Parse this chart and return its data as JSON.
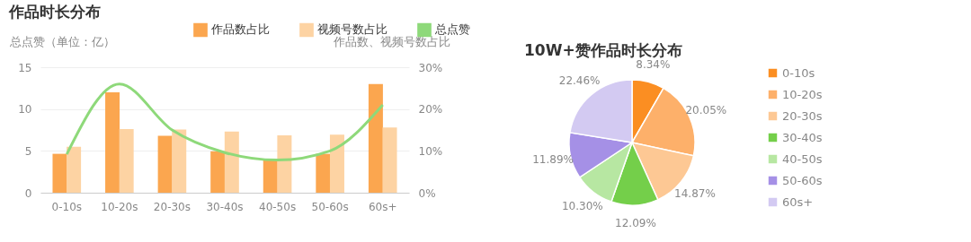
{
  "chart_data": [
    {
      "type": "bar",
      "title": "作品时长分布",
      "ylabel": "总点赞（单位：亿）",
      "y2label": "作品数、视频号数占比",
      "categories": [
        "0-10s",
        "10-20s",
        "20-30s",
        "30-40s",
        "40-50s",
        "50-60s",
        "60s+"
      ],
      "series": [
        {
          "name": "作品数占比",
          "color": "#fba64f",
          "axis": "y2",
          "values": [
            9.3,
            24,
            13.6,
            9.9,
            7.8,
            9.3,
            26
          ]
        },
        {
          "name": "视频号数占比",
          "color": "#fdd3a3",
          "axis": "y2",
          "values": [
            11,
            15.2,
            15.1,
            14.6,
            13.7,
            13.9,
            15.6
          ]
        },
        {
          "name": "总点赞",
          "type": "line",
          "color": "#8ed97a",
          "values": [
            4.6,
            13,
            7.5,
            4.8,
            3.9,
            5,
            10.5
          ]
        }
      ],
      "ylim": [
        0,
        15
      ],
      "yticks": [
        0,
        5,
        10,
        15
      ],
      "y2lim": [
        0,
        30
      ],
      "y2ticks": [
        {
          "value": 0,
          "label": "0%"
        },
        {
          "value": 10,
          "label": "10%"
        },
        {
          "value": 20,
          "label": "20%"
        },
        {
          "value": 30,
          "label": "30%"
        }
      ],
      "grid": "y",
      "legend": "top"
    },
    {
      "type": "pie",
      "title": "10W+赞作品时长分布",
      "categories": [
        "0-10s",
        "10-20s",
        "20-30s",
        "30-40s",
        "40-50s",
        "50-60s",
        "60s+"
      ],
      "values": [
        8.34,
        20.05,
        14.87,
        12.09,
        10.3,
        11.89,
        22.46
      ],
      "value_labels": [
        "8.34%",
        "20.05%",
        "14.87%",
        "12.09%",
        "10.30%",
        "11.89%",
        "22.46%"
      ],
      "colors": [
        "#fb8e22",
        "#fdb06a",
        "#fdc894",
        "#74cf4a",
        "#b7e7a2",
        "#a590e6",
        "#d3caf2"
      ],
      "legend": "right"
    }
  ]
}
